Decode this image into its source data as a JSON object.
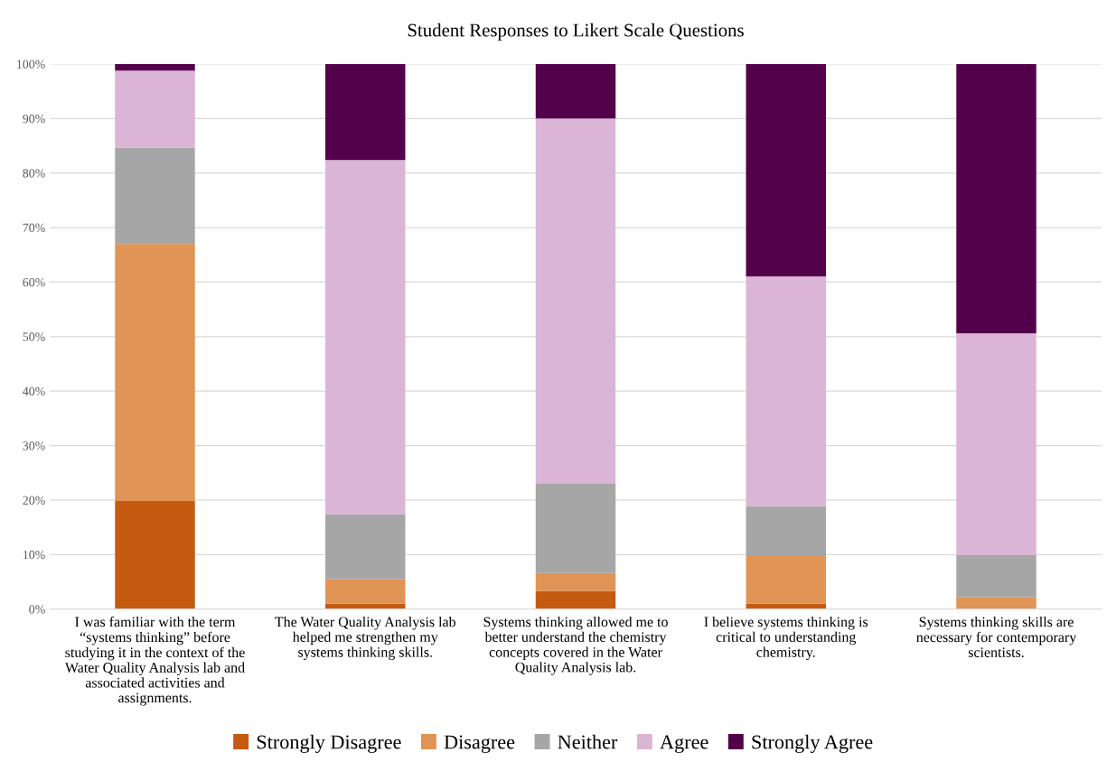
{
  "chart_data": {
    "type": "bar",
    "stacked": true,
    "title": "Student Responses to Likert Scale Questions",
    "categories": [
      "I was familiar with the term\n“systems thinking” before\nstudying it in the context of the\nWater Quality Analysis lab and\nassociated activities and\nassignments.",
      "The Water Quality Analysis lab\nhelped me strengthen my\nsystems thinking skills.",
      "Systems thinking allowed me to\nbetter understand the chemistry\nconcepts covered in the Water\nQuality Analysis lab.",
      "I believe systems thinking is\ncritical to understanding\nchemistry.",
      "Systems thinking skills are\nnecessary for contemporary\nscientists."
    ],
    "series": [
      {
        "name": "Strongly Disagree",
        "color": "#c55a11",
        "values": [
          19.8,
          1.0,
          3.3,
          1.0,
          0
        ]
      },
      {
        "name": "Disagree",
        "color": "#e09455",
        "values": [
          47.2,
          4.5,
          3.3,
          8.9,
          2.2
        ]
      },
      {
        "name": "Neither",
        "color": "#a6a6a6",
        "values": [
          17.6,
          11.9,
          16.5,
          9.0,
          7.7
        ]
      },
      {
        "name": "Agree",
        "color": "#dbb5d5",
        "values": [
          14.2,
          65.0,
          66.9,
          42.1,
          40.7
        ]
      },
      {
        "name": "Strongly Agree",
        "color": "#52004a",
        "values": [
          1.2,
          17.6,
          10.0,
          39.0,
          49.4
        ]
      }
    ],
    "ylim": [
      0,
      100
    ],
    "yticks": [
      {
        "value": 0,
        "label": "0%"
      },
      {
        "value": 10,
        "label": "10%"
      },
      {
        "value": 20,
        "label": "20%"
      },
      {
        "value": 30,
        "label": "30%"
      },
      {
        "value": 40,
        "label": "40%"
      },
      {
        "value": 50,
        "label": "50%"
      },
      {
        "value": 60,
        "label": "60%"
      },
      {
        "value": 70,
        "label": "70%"
      },
      {
        "value": 80,
        "label": "80%"
      },
      {
        "value": 90,
        "label": "90%"
      },
      {
        "value": 100,
        "label": "100%"
      }
    ],
    "grid": "y",
    "legend": "bottom"
  }
}
